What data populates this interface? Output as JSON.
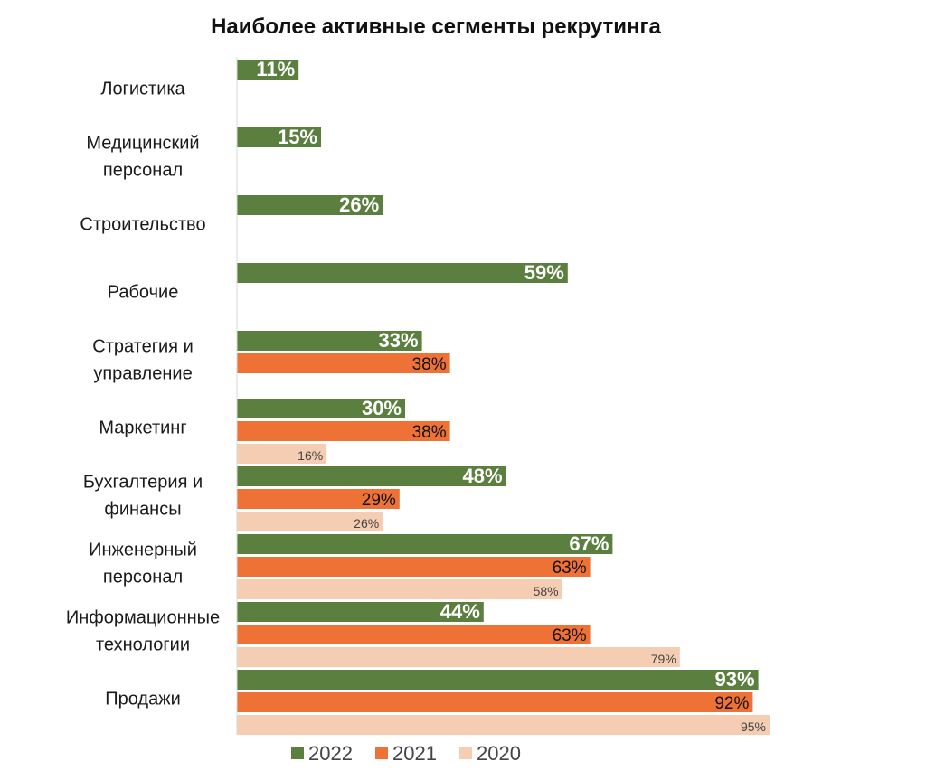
{
  "chart_data": {
    "type": "bar",
    "orientation": "horizontal",
    "title": "Наиболее активные сегменты рекрутинга",
    "xlabel": "",
    "ylabel": "",
    "xlim": [
      0,
      100
    ],
    "value_suffix": "%",
    "grid": false,
    "legend_position": "bottom",
    "categories": [
      [
        "Логистика"
      ],
      [
        "Медицинский",
        "персонал"
      ],
      [
        "Строительство"
      ],
      [
        "Рабочие"
      ],
      [
        "Стратегия и",
        "управление"
      ],
      [
        "Маркетинг"
      ],
      [
        "Бухгалтерия и",
        "финансы"
      ],
      [
        "Инженерный",
        "персонал"
      ],
      [
        "Информационные",
        "технологии"
      ],
      [
        "Продажи"
      ]
    ],
    "series": [
      {
        "name": "2022",
        "color": "#5b7f3e",
        "values": [
          11,
          15,
          26,
          59,
          33,
          30,
          48,
          67,
          44,
          93
        ]
      },
      {
        "name": "2021",
        "color": "#ee7236",
        "values": [
          null,
          null,
          null,
          null,
          38,
          38,
          29,
          63,
          63,
          92
        ]
      },
      {
        "name": "2020",
        "color": "#f5cdb2",
        "values": [
          null,
          null,
          null,
          null,
          null,
          16,
          26,
          58,
          79,
          95
        ]
      }
    ]
  }
}
